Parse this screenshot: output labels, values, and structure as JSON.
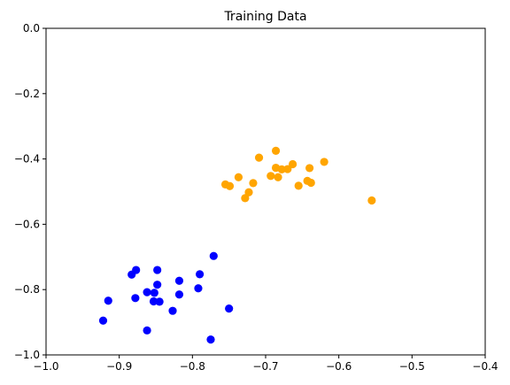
{
  "chart_data": {
    "type": "scatter",
    "title": "Training Data",
    "xlabel": "",
    "ylabel": "",
    "xlim": [
      -1.0,
      -0.4
    ],
    "ylim": [
      -1.0,
      0.0
    ],
    "x_ticks": [
      -1.0,
      -0.9,
      -0.8,
      -0.7,
      -0.6,
      -0.5,
      -0.4
    ],
    "x_tick_labels": [
      "−1.0",
      "−0.9",
      "−0.8",
      "−0.7",
      "−0.6",
      "−0.5",
      "−0.4"
    ],
    "y_ticks": [
      0.0,
      -0.2,
      -0.4,
      -0.6,
      -0.8,
      -1.0
    ],
    "y_tick_labels": [
      "0.0",
      "−0.2",
      "−0.4",
      "−0.6",
      "−0.8",
      "−1.0"
    ],
    "grid": false,
    "series": [
      {
        "color": "#0000ff",
        "points": [
          [
            -0.922,
            -0.895
          ],
          [
            -0.915,
            -0.834
          ],
          [
            -0.883,
            -0.754
          ],
          [
            -0.877,
            -0.74
          ],
          [
            -0.878,
            -0.826
          ],
          [
            -0.862,
            -0.808
          ],
          [
            -0.852,
            -0.81
          ],
          [
            -0.848,
            -0.74
          ],
          [
            -0.848,
            -0.785
          ],
          [
            -0.853,
            -0.836
          ],
          [
            -0.845,
            -0.837
          ],
          [
            -0.862,
            -0.925
          ],
          [
            -0.827,
            -0.865
          ],
          [
            -0.818,
            -0.773
          ],
          [
            -0.818,
            -0.815
          ],
          [
            -0.79,
            -0.753
          ],
          [
            -0.792,
            -0.796
          ],
          [
            -0.771,
            -0.697
          ],
          [
            -0.75,
            -0.858
          ],
          [
            -0.775,
            -0.953
          ]
        ]
      },
      {
        "color": "#ffa500",
        "points": [
          [
            -0.755,
            -0.478
          ],
          [
            -0.749,
            -0.483
          ],
          [
            -0.737,
            -0.456
          ],
          [
            -0.728,
            -0.52
          ],
          [
            -0.723,
            -0.502
          ],
          [
            -0.717,
            -0.474
          ],
          [
            -0.709,
            -0.396
          ],
          [
            -0.693,
            -0.452
          ],
          [
            -0.686,
            -0.375
          ],
          [
            -0.686,
            -0.427
          ],
          [
            -0.683,
            -0.456
          ],
          [
            -0.678,
            -0.432
          ],
          [
            -0.67,
            -0.431
          ],
          [
            -0.663,
            -0.416
          ],
          [
            -0.655,
            -0.482
          ],
          [
            -0.643,
            -0.467
          ],
          [
            -0.64,
            -0.428
          ],
          [
            -0.638,
            -0.473
          ],
          [
            -0.62,
            -0.409
          ],
          [
            -0.555,
            -0.527
          ]
        ]
      }
    ]
  }
}
